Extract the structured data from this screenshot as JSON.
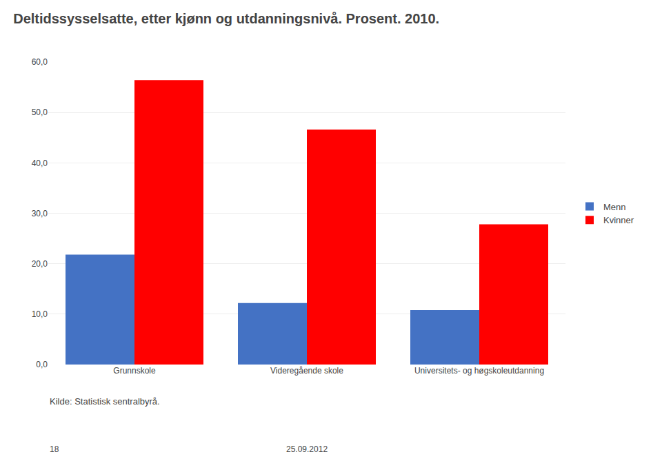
{
  "chart_data": {
    "type": "bar",
    "title": "Deltidssysselsatte, etter kjønn og utdanningsnivå. Prosent. 2010.",
    "categories": [
      "Grunnskole",
      "Videregående skole",
      "Universitets- og høgskoleutdanning"
    ],
    "series": [
      {
        "name": "Menn",
        "color": "#4472C4",
        "values": [
          21.8,
          12.2,
          10.8
        ]
      },
      {
        "name": "Kvinner",
        "color": "#FF0000",
        "values": [
          56.4,
          46.6,
          27.8
        ]
      }
    ],
    "ylim": [
      0,
      60
    ],
    "yticks": [
      {
        "value": 0,
        "label": "0,0"
      },
      {
        "value": 10,
        "label": "10,0"
      },
      {
        "value": 20,
        "label": "20,0"
      },
      {
        "value": 30,
        "label": "30,0"
      },
      {
        "value": 40,
        "label": "40,0"
      },
      {
        "value": 50,
        "label": "50,0"
      },
      {
        "value": 60,
        "label": "60,0"
      }
    ],
    "grid": true,
    "legend": "right",
    "annotations": [
      "Kilde: Statistisk sentralbyrå.",
      "18",
      "25.09.2012"
    ]
  }
}
